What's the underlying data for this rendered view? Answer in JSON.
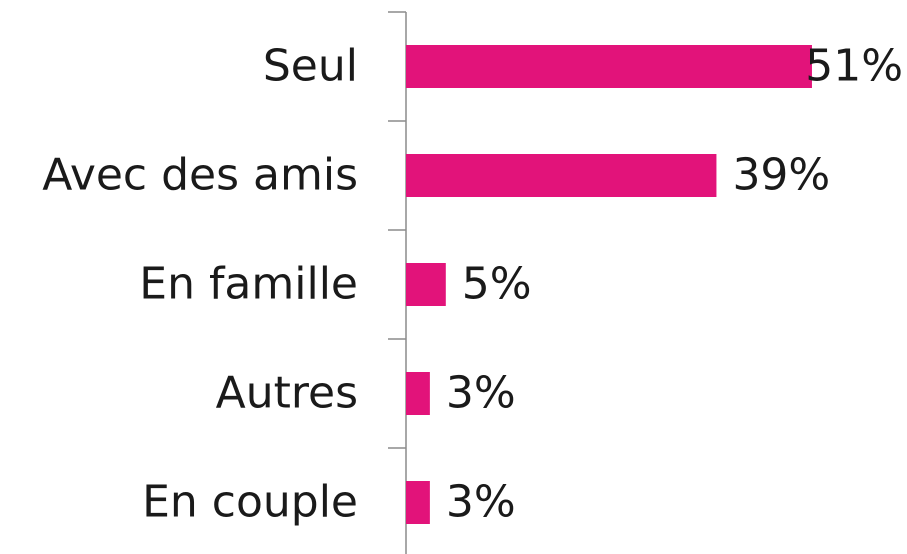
{
  "chart_data": {
    "type": "bar",
    "orientation": "horizontal",
    "categories": [
      "Seul",
      "Avec des amis",
      "En famille",
      "Autres",
      "En couple"
    ],
    "values": [
      51,
      39,
      5,
      3,
      3
    ],
    "value_labels": [
      "51%",
      "39%",
      "5%",
      "3%",
      "3%"
    ],
    "color": "#e2137a"
  }
}
